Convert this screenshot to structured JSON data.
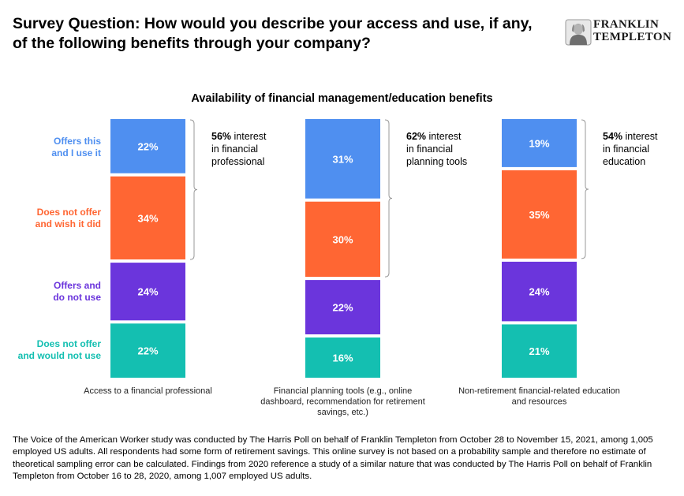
{
  "header": {
    "title_line1": "Survey Question: How would you describe your access and use, if any,",
    "title_line2": "of the following benefits through your company?"
  },
  "logo": {
    "line1": "FRANKLIN",
    "line2": "TEMPLETON",
    "icon": "franklin-portrait-seal-icon"
  },
  "footnote": {
    "line1": "The Voice of the American Worker study was conducted by The Harris Poll on behalf of Franklin Templeton from October 28 to November 15, 2021, among 1,005",
    "line2": "employed US adults. All respondents had some form of retirement savings. This online survey is not based on a probability sample and therefore no estimate of",
    "line3": "theoretical sampling error can be calculated. Findings from 2020 reference a study of a similar nature that was conducted by The Harris Poll on behalf of Franklin",
    "line4": "Templeton from October 16 to 28, 2020, among 1,007 employed US adults."
  },
  "chart_data": {
    "type": "bar",
    "stacked": true,
    "normalized": true,
    "title": "Availability of financial management/education benefits",
    "categories": [
      [
        "Access to a financial professional"
      ],
      [
        "Financial planning tools (e.g., online",
        "dashboard, recommendation for retirement",
        "savings, etc.)"
      ],
      [
        "Non-retirement financial-related education",
        "and resources"
      ]
    ],
    "series": [
      {
        "name": [
          "Offers this",
          "and I use it"
        ],
        "color": "#4F8FF0",
        "values": [
          22,
          31,
          19
        ]
      },
      {
        "name": [
          "Does not offer",
          "and wish it did"
        ],
        "color": "#FF6633",
        "values": [
          34,
          30,
          35
        ]
      },
      {
        "name": [
          "Offers and",
          "do not use"
        ],
        "color": "#6B35DC",
        "values": [
          24,
          22,
          24
        ]
      },
      {
        "name": [
          "Does not offer",
          "and would not use"
        ],
        "color": "#14BFB1",
        "values": [
          22,
          16,
          21
        ]
      }
    ],
    "value_suffix": "%",
    "annotations": [
      {
        "bold": "56%",
        "lines": [
          " interest",
          "in financial",
          "professional"
        ]
      },
      {
        "bold": "62%",
        "lines": [
          " interest",
          "in financial",
          "planning tools"
        ]
      },
      {
        "bold": "54%",
        "lines": [
          " interest",
          "in financial",
          "education"
        ]
      }
    ],
    "legend_position": "left"
  }
}
